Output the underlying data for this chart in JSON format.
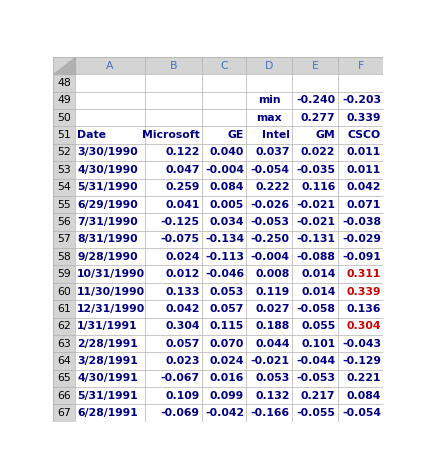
{
  "row_numbers": [
    48,
    49,
    50,
    51,
    52,
    53,
    54,
    55,
    56,
    57,
    58,
    59,
    60,
    61,
    62,
    63,
    64,
    65,
    66,
    67
  ],
  "col_letters": [
    "",
    "A",
    "B",
    "C",
    "D",
    "E",
    "F"
  ],
  "header_row": [
    "Date",
    "Microsoft",
    "GE",
    "Intel",
    "GM",
    "CSCO"
  ],
  "min_row": [
    "",
    "",
    "",
    "min",
    "-0.240",
    "-0.203"
  ],
  "max_row": [
    "",
    "",
    "",
    "max",
    "0.277",
    "0.339"
  ],
  "data_rows": [
    [
      "3/30/1990",
      "0.122",
      "0.040",
      "0.037",
      "0.022",
      "0.011"
    ],
    [
      "4/30/1990",
      "0.047",
      "-0.004",
      "-0.054",
      "-0.035",
      "0.011"
    ],
    [
      "5/31/1990",
      "0.259",
      "0.084",
      "0.222",
      "0.116",
      "0.042"
    ],
    [
      "6/29/1990",
      "0.041",
      "0.005",
      "-0.026",
      "-0.021",
      "0.071"
    ],
    [
      "7/31/1990",
      "-0.125",
      "0.034",
      "-0.053",
      "-0.021",
      "-0.038"
    ],
    [
      "8/31/1990",
      "-0.075",
      "-0.134",
      "-0.250",
      "-0.131",
      "-0.029"
    ],
    [
      "9/28/1990",
      "0.024",
      "-0.113",
      "-0.004",
      "-0.088",
      "-0.091"
    ],
    [
      "10/31/1990",
      "0.012",
      "-0.046",
      "0.008",
      "0.014",
      "0.311"
    ],
    [
      "11/30/1990",
      "0.133",
      "0.053",
      "0.119",
      "0.014",
      "0.339"
    ],
    [
      "12/31/1990",
      "0.042",
      "0.057",
      "0.027",
      "-0.058",
      "0.136"
    ],
    [
      "1/31/1991",
      "0.304",
      "0.115",
      "0.188",
      "0.055",
      "0.304"
    ],
    [
      "2/28/1991",
      "0.057",
      "0.070",
      "0.044",
      "0.101",
      "-0.043"
    ],
    [
      "3/28/1991",
      "0.023",
      "0.024",
      "-0.021",
      "-0.044",
      "-0.129"
    ],
    [
      "4/30/1991",
      "-0.067",
      "0.016",
      "0.053",
      "-0.053",
      "0.221"
    ],
    [
      "5/31/1991",
      "0.109",
      "0.099",
      "0.132",
      "0.217",
      "0.084"
    ],
    [
      "6/28/1991",
      "-0.069",
      "-0.042",
      "-0.166",
      "-0.055",
      "-0.054"
    ]
  ],
  "red_data_indices": [
    7,
    8,
    10
  ],
  "red_col_index": 5,
  "header_bg": "#d4d4d4",
  "grid_color": "#b0b0b0",
  "text_color": "#000080",
  "red_color": "#cc0000",
  "font_size": 7.8
}
